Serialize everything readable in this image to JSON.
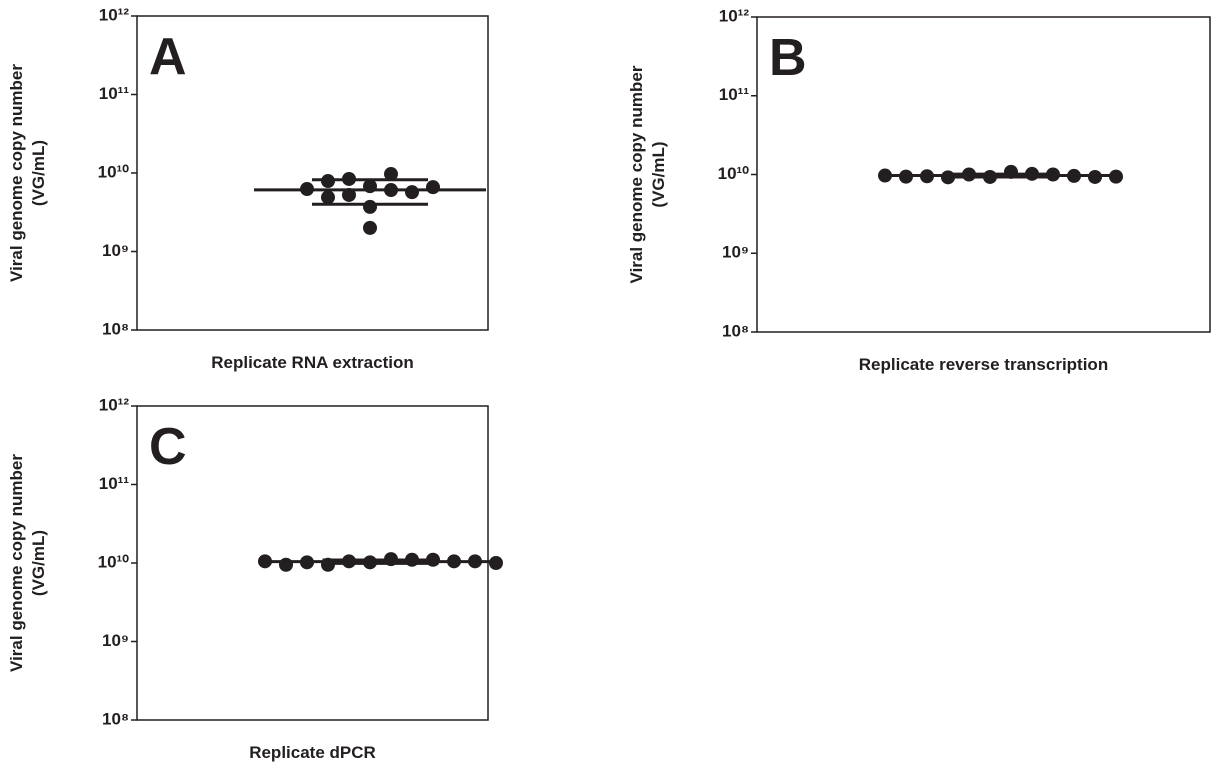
{
  "chart_data": [
    {
      "type": "scatter",
      "title": "A",
      "ylabel": [
        "Viral genome copy number",
        "(VG/mL)"
      ],
      "xlabel": "Replicate RNA extraction",
      "log_y": true,
      "ylim": [
        100000000,
        1000000000000
      ],
      "yticks": [
        {
          "value": 100000000,
          "label": "10⁸"
        },
        {
          "value": 1000000000,
          "label": "10⁹"
        },
        {
          "value": 10000000000,
          "label": "10¹⁰"
        },
        {
          "value": 100000000000,
          "label": "10¹¹"
        },
        {
          "value": 1000000000000,
          "label": "10¹²"
        }
      ],
      "color": "#231f20",
      "values": [
        6800000000,
        6070000000,
        5250000000,
        8400000000,
        5700000000,
        3700000000,
        2000000000,
        7900000000,
        4900000000,
        9700000000,
        6600000000,
        6250000000
      ],
      "mean": 6100000000,
      "sd": 2100000000
    },
    {
      "type": "scatter",
      "title": "B",
      "ylabel": [
        "Viral genome copy number",
        "(VG/mL)"
      ],
      "xlabel": "Replicate reverse transcription",
      "log_y": true,
      "ylim": [
        100000000,
        1000000000000
      ],
      "yticks": [
        {
          "value": 100000000,
          "label": "10⁸"
        },
        {
          "value": 1000000000,
          "label": "10⁹"
        },
        {
          "value": 10000000000,
          "label": "10¹⁰"
        },
        {
          "value": 100000000000,
          "label": "10¹¹"
        },
        {
          "value": 1000000000000,
          "label": "10¹²"
        }
      ],
      "color": "#231f20",
      "values": [
        9300000000,
        10800000000,
        10000000000,
        10200000000,
        9200000000,
        10000000000,
        9500000000,
        9600000000,
        9400000000,
        9300000000,
        9700000000,
        9400000000
      ],
      "mean": 9700000000,
      "sd": 400000000
    },
    {
      "type": "scatter",
      "title": "C",
      "ylabel": [
        "Viral genome copy number",
        "(VG/mL)"
      ],
      "xlabel": "Replicate dPCR",
      "log_y": true,
      "ylim": [
        100000000,
        1000000000000
      ],
      "yticks": [
        {
          "value": 100000000,
          "label": "10⁸"
        },
        {
          "value": 1000000000,
          "label": "10⁹"
        },
        {
          "value": 10000000000,
          "label": "10¹⁰"
        },
        {
          "value": 100000000000,
          "label": "10¹¹"
        },
        {
          "value": 1000000000000,
          "label": "10¹²"
        }
      ],
      "color": "#231f20",
      "values": [
        10200000000,
        11200000000,
        10500000000,
        11000000000,
        9500000000,
        11000000000,
        10200000000,
        10500000000,
        9500000000,
        10500000000,
        10500000000,
        10000000000
      ],
      "mean": 10400000000,
      "sd": 500000000
    }
  ]
}
